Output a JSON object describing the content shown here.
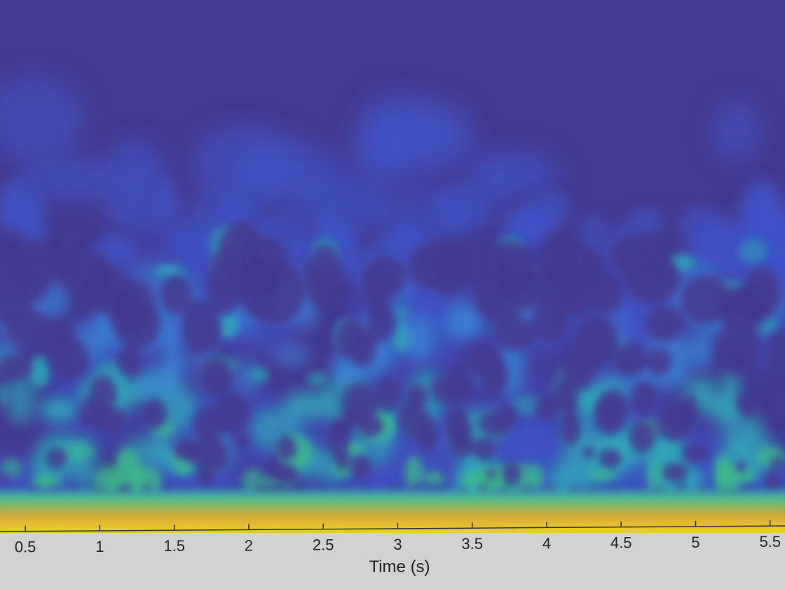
{
  "chart_data": {
    "type": "heatmap",
    "title": "",
    "xlabel": "Time (s)",
    "ylabel": "",
    "x_ticks": [
      0.5,
      1,
      1.5,
      2,
      2.5,
      3,
      3.5,
      4,
      4.5,
      5,
      5.5
    ],
    "x_tick_labels": [
      "0.5",
      "1",
      "1.5",
      "2",
      "2.5",
      "3",
      "3.5",
      "4",
      "4.5",
      "5",
      "5.5"
    ],
    "xlim": [
      0.33,
      5.6
    ],
    "colormap": [
      "#433a91",
      "#3f52c6",
      "#3c7fd8",
      "#2fa8b8",
      "#3bbf8a",
      "#b7c43a",
      "#e6c72e",
      "#f2e21c"
    ],
    "low_frequency_band_color": "#e8cf2a"
  }
}
